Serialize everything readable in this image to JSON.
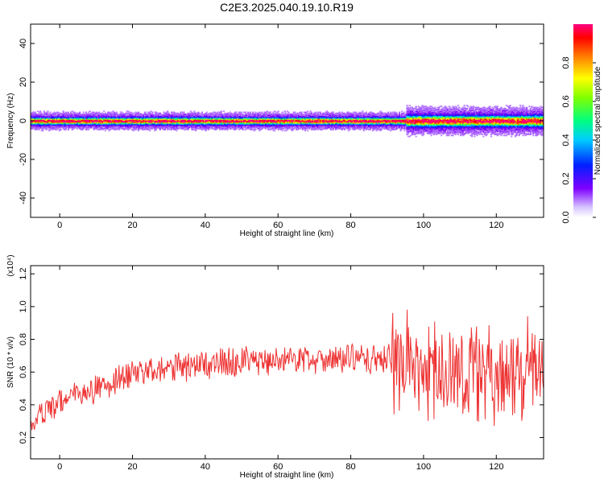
{
  "chart_data": [
    {
      "type": "heatmap",
      "title": "C2E3.2025.040.19.10.R19",
      "xlabel": "Height of straight line (km)",
      "ylabel": "Frequency (Hz)",
      "xlim": [
        -8,
        133
      ],
      "ylim": [
        -50,
        50
      ],
      "xticks": [
        "0",
        "20",
        "40",
        "60",
        "80",
        "100",
        "120"
      ],
      "yticks": [
        "40",
        "20",
        "0",
        "-20",
        "-40"
      ],
      "colorbar": {
        "label": "Normalized spectral amplitude",
        "range": [
          0,
          1
        ],
        "ticks": [
          "0.0",
          "0.2",
          "0.4",
          "0.6",
          "0.8"
        ]
      },
      "description_band": {
        "center_hz": 0,
        "core_halfwidth_hz": 1,
        "outer_halfwidth_hz": 4,
        "peak_amplitude": 0.95,
        "broadening_after_km": 95
      }
    },
    {
      "type": "line",
      "xlabel": "Height of straight line (km)",
      "ylabel": "SNR (10 * v/v)",
      "yscale_label": "(x10⁴)",
      "xlim": [
        -8,
        133
      ],
      "ylim": [
        0.07,
        1.25
      ],
      "xticks": [
        "0",
        "20",
        "40",
        "60",
        "80",
        "100",
        "120"
      ],
      "yticks": [
        "1.2",
        "1.0",
        "0.8",
        "0.6",
        "0.4",
        "0.2"
      ],
      "color": "#ee3333",
      "series": [
        {
          "x": [
            -8,
            0,
            10,
            20,
            30,
            40,
            50,
            60,
            70,
            80,
            90,
            95,
            100,
            110,
            120,
            133
          ],
          "values": [
            0.28,
            0.42,
            0.5,
            0.58,
            0.62,
            0.65,
            0.66,
            0.67,
            0.68,
            0.68,
            0.67,
            0.66,
            0.62,
            0.6,
            0.58,
            0.62
          ]
        }
      ]
    }
  ]
}
